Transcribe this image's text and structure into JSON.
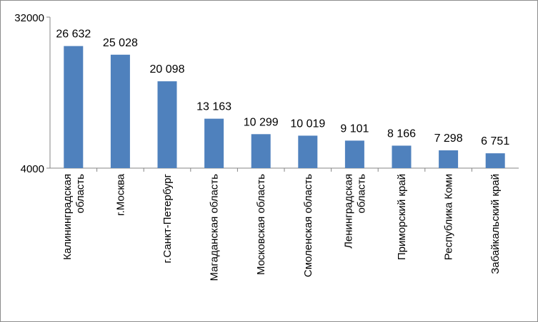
{
  "chart_data": {
    "type": "bar",
    "title": "",
    "xlabel": "",
    "ylabel": "",
    "ylim": [
      4000,
      32000
    ],
    "yticks": [
      "4000",
      "32000"
    ],
    "grid": false,
    "legend": "none",
    "bar_color": "#4F81BD",
    "categories": [
      [
        "Калининградская",
        "область"
      ],
      [
        "г.Москва"
      ],
      [
        "г.Санкт-Петербург"
      ],
      [
        "Магаданская область"
      ],
      [
        "Московская область"
      ],
      [
        "Смоленская область"
      ],
      [
        "Ленинградская",
        "область"
      ],
      [
        "Приморский край"
      ],
      [
        "Республика Коми"
      ],
      [
        "Забайкальский край"
      ]
    ],
    "values": [
      26632,
      25028,
      20098,
      13163,
      10299,
      10019,
      9101,
      8166,
      7298,
      6751
    ],
    "data_labels": [
      "26 632",
      "25 028",
      "20 098",
      "13 163",
      "10 299",
      "10 019",
      "9 101",
      "8 166",
      "7 298",
      "6 751"
    ]
  }
}
